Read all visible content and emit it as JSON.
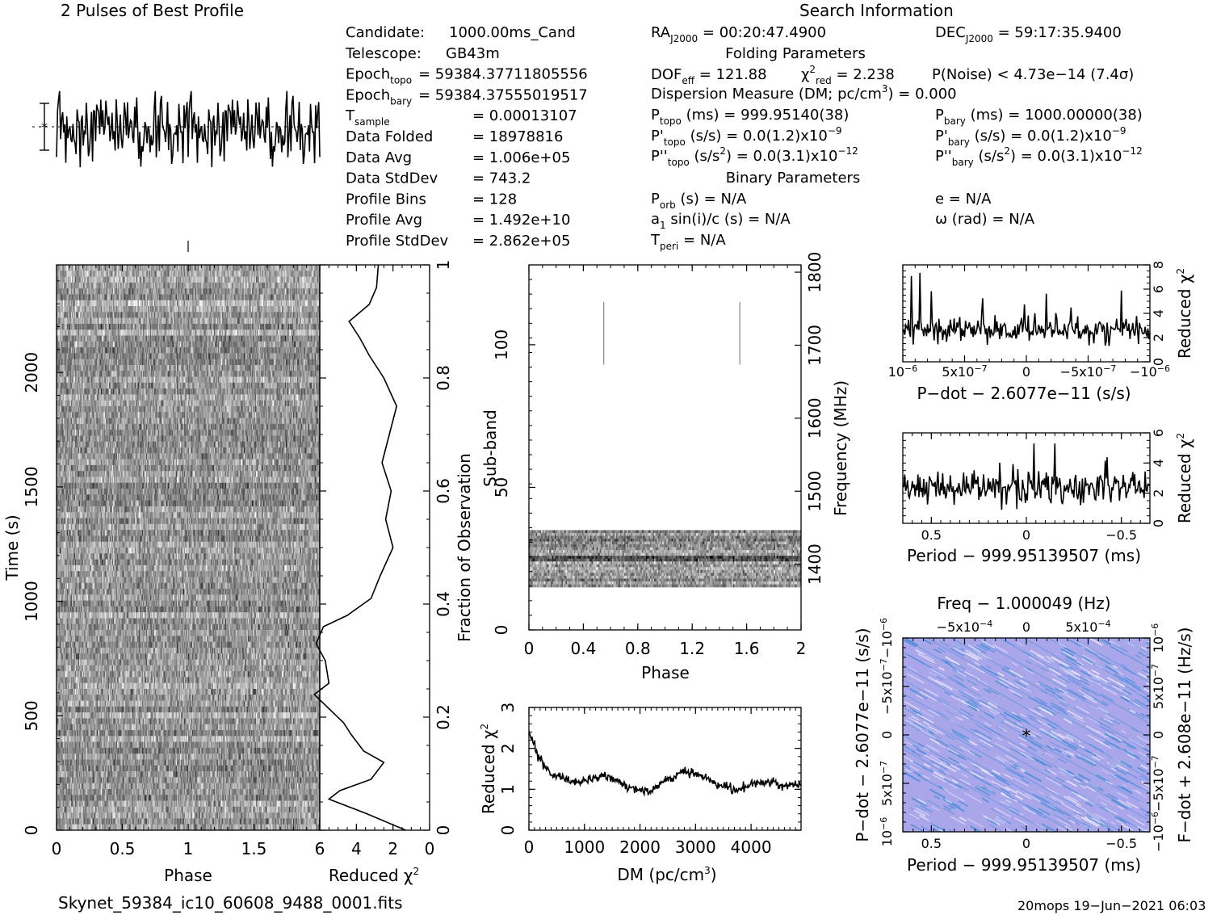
{
  "header": {
    "left_title": "2 Pulses of Best Profile",
    "right_title": "Search Information"
  },
  "info": {
    "col1": [
      {
        "label": "Candidate:",
        "value": "1000.00ms_Cand"
      },
      {
        "label": "Telescope:",
        "value": "GB43m"
      },
      {
        "label": "Epoch",
        "sub": "topo",
        "value": "= 59384.37711805556"
      },
      {
        "label": "Epoch",
        "sub": "bary",
        "value": "= 59384.37555019517"
      },
      {
        "label": "T",
        "sub": "sample",
        "value": "=   0.00013107"
      },
      {
        "label": "Data Folded",
        "value": "=   18978816"
      },
      {
        "label": "Data Avg",
        "value": "=   1.006e+05"
      },
      {
        "label": "Data StdDev",
        "value": "=   743.2"
      },
      {
        "label": "Profile Bins",
        "value": "=   128"
      },
      {
        "label": "Profile Avg",
        "value": "=   1.492e+10"
      },
      {
        "label": "Profile StdDev",
        "value": "=   2.862e+05"
      }
    ],
    "ra": {
      "label": "RA",
      "sub": "J2000",
      "value": "= 00:20:47.4900"
    },
    "dec": {
      "label": "DEC",
      "sub": "J2000",
      "value": "= 59:17:35.9400"
    },
    "folding_title": "Folding Parameters",
    "dof": {
      "label": "DOF",
      "sub": "eff",
      "value": "= 121.88"
    },
    "chi": {
      "label": "χ",
      "sup": "2",
      "sub": "red",
      "value": "= 2.238"
    },
    "pnoise": "P(Noise) < 4.73e−14   (7.4σ)",
    "dm_line": {
      "text": "Dispersion Measure (DM; pc/cm",
      "sup": "3",
      "end": ") = 0.000"
    },
    "p_topo": {
      "label": "P",
      "sub": "topo",
      "value": "(ms)  =   999.95140(38)"
    },
    "p_bary": {
      "label": "P",
      "sub": "bary",
      "value": "(ms)  =   1000.00000(38)"
    },
    "pd_topo": {
      "label": "P'",
      "sub": "topo",
      "value": "(s/s) = 0.0(1.2)x10",
      "sup": "−9"
    },
    "pd_bary": {
      "label": "P'",
      "sub": "bary",
      "value": "(s/s) = 0.0(1.2)x10",
      "sup": "−9"
    },
    "pdd_topo": {
      "label": "P''",
      "sub": "topo",
      "value": "(s/s",
      "sup1": "2",
      "mid": ") = 0.0(3.1)x10",
      "sup": "−12"
    },
    "pdd_bary": {
      "label": "P''",
      "sub": "bary",
      "value": "(s/s",
      "sup1": "2",
      "mid": ") = 0.0(3.1)x10",
      "sup": "−12"
    },
    "binary_title": "Binary Parameters",
    "porb": {
      "label": "P",
      "sub": "orb",
      "value": "(s) = N/A"
    },
    "e": "e = N/A",
    "asini": {
      "label": "a",
      "sub": "1",
      "value": "sin(i)/c (s) = N/A"
    },
    "omega": "ω (rad) = N/A",
    "tperi": {
      "label": "T",
      "sub": "peri",
      "value": "= N/A"
    }
  },
  "colors": {
    "ink": "#000000",
    "pp_bg": "#a9a6ea",
    "pp_stripe": "#4a8fd8",
    "pp_light": "#e6e4fb",
    "gray_mid": "#888888"
  },
  "chart_data": [
    {
      "id": "profile",
      "type": "line",
      "title": "2 Pulses of Best Profile",
      "xlim": [
        0,
        2
      ],
      "bins_per_pulse": 128,
      "pulses": 2
    },
    {
      "id": "time-phase",
      "type": "heatmap",
      "xlabel": "Phase",
      "ylabel": "Time (s)",
      "xlim": [
        0,
        2
      ],
      "ylim": [
        0,
        2470
      ],
      "x_ticks": [
        "0",
        "0.5",
        "1",
        "1.5"
      ],
      "y_ticks": [
        "0",
        "500",
        "1000",
        "1500",
        "2000"
      ],
      "x_tick_values": [
        0,
        0.5,
        1,
        1.5
      ],
      "y_tick_values": [
        0,
        500,
        1000,
        1500,
        2000
      ]
    },
    {
      "id": "chi-vs-time",
      "type": "line",
      "xlabel": "Reduced χ²",
      "ylabel": "Fraction of Observation",
      "xlim": [
        6,
        0
      ],
      "ylim": [
        0,
        1
      ],
      "x_ticks": [
        "6",
        "4",
        "2",
        "0"
      ],
      "x_tick_values": [
        6,
        4,
        2,
        0
      ],
      "y_ticks": [
        "0",
        "0.2",
        "0.4",
        "0.6",
        "0.8",
        "1"
      ],
      "y_tick_values": [
        0,
        0.2,
        0.4,
        0.6,
        0.8,
        1.0
      ],
      "frac": [
        0,
        0.03,
        0.055,
        0.07,
        0.09,
        0.12,
        0.14,
        0.17,
        0.19,
        0.24,
        0.26,
        0.3,
        0.33,
        0.36,
        0.38,
        0.41,
        0.45,
        0.5,
        0.55,
        0.6,
        0.65,
        0.7,
        0.75,
        0.8,
        0.84,
        0.87,
        0.9,
        0.93,
        0.96,
        1.0
      ],
      "chi": [
        1.3,
        3.5,
        5.5,
        4.9,
        3.2,
        2.5,
        3.6,
        4.3,
        4.7,
        6.3,
        5.5,
        5.7,
        6.2,
        5.8,
        4.5,
        3.2,
        2.7,
        2.0,
        2.4,
        2.1,
        2.6,
        2.2,
        1.8,
        2.5,
        3.3,
        3.8,
        4.4,
        3.3,
        2.9,
        2.8
      ]
    },
    {
      "id": "subband-phase",
      "type": "heatmap",
      "xlabel": "Phase",
      "ylabel": "Sub-band",
      "y2label": "Frequency (MHz)",
      "xlim": [
        0,
        2
      ],
      "ylim": [
        0,
        128
      ],
      "y2lim": [
        1310,
        1810
      ],
      "x_ticks": [
        "0",
        "0.4",
        "0.8",
        "1.2",
        "1.6",
        "2"
      ],
      "x_tick_values": [
        0,
        0.4,
        0.8,
        1.2,
        1.6,
        2.0
      ],
      "y_ticks": [
        "0",
        "50",
        "100"
      ],
      "y_tick_values": [
        0,
        50,
        100
      ],
      "y2_ticks": [
        "1400",
        "1500",
        "1600",
        "1700",
        "1800"
      ],
      "y2_tick_values": [
        1400,
        1500,
        1600,
        1700,
        1800
      ],
      "band_subbands": [
        15,
        35
      ],
      "rfi_lines_phase": [
        0.55,
        1.55
      ],
      "rfi_lines_subbands": [
        93,
        115
      ]
    },
    {
      "id": "chi-vs-dm",
      "type": "line",
      "xlabel": "DM (pc/cm³)",
      "ylabel": "Reduced χ²",
      "xlim": [
        0,
        4900
      ],
      "ylim": [
        0,
        3
      ],
      "x_ticks": [
        "0",
        "1000",
        "2000",
        "3000",
        "4000"
      ],
      "x_tick_values": [
        0,
        1000,
        2000,
        3000,
        4000
      ],
      "y_ticks": [
        "0",
        "1",
        "2",
        "3"
      ],
      "y_tick_values": [
        0,
        1,
        2,
        3
      ],
      "dm": [
        0,
        100,
        200,
        300,
        500,
        800,
        1000,
        1300,
        1600,
        1900,
        2200,
        2500,
        2800,
        3100,
        3400,
        3700,
        4000,
        4300,
        4600,
        4900
      ],
      "chi": [
        2.4,
        2.05,
        1.75,
        1.5,
        1.3,
        1.15,
        1.2,
        1.35,
        1.2,
        1.0,
        0.95,
        1.25,
        1.45,
        1.35,
        1.15,
        0.95,
        1.1,
        1.2,
        1.05,
        1.15
      ]
    },
    {
      "id": "chi-vs-pdot",
      "type": "line",
      "xlabel": "P−dot − 2.6077e−11 (s/s)",
      "ylabel": "Reduced χ²",
      "xlim": [
        1e-06,
        -1e-06
      ],
      "ylim": [
        0,
        8
      ],
      "x_ticks": [
        "10",
        "5x10",
        "0",
        "−5x10",
        "−10"
      ],
      "x_ticks_exp": [
        "−6",
        "−7",
        "",
        "−7",
        "−6"
      ],
      "x_tick_values": [
        1e-06,
        5e-07,
        0,
        -5e-07,
        -1e-06
      ],
      "y_ticks": [
        "0",
        "2",
        "4",
        "6",
        "8"
      ],
      "y_tick_values": [
        0,
        2,
        4,
        6,
        8
      ],
      "mean": 2.6,
      "peak": 7.6
    },
    {
      "id": "chi-vs-period",
      "type": "line",
      "xlabel": "Period − 999.95139507 (ms)",
      "ylabel": "Reduced χ²",
      "xlim": [
        0.65,
        -0.65
      ],
      "ylim": [
        0,
        6
      ],
      "x_ticks": [
        "0.5",
        "0",
        "−0.5"
      ],
      "x_tick_values": [
        0.5,
        0,
        -0.5
      ],
      "y_ticks": [
        "0",
        "2",
        "4",
        "6"
      ],
      "y_tick_values": [
        0,
        2,
        4,
        6
      ],
      "mean": 2.4,
      "peak": 5.3
    },
    {
      "id": "p-pdot",
      "type": "heatmap",
      "title": "Freq − 1.000049 (Hz)",
      "xlabel": "Period − 999.95139507 (ms)",
      "ylabel": "P−dot − 2.6077e−11 (s/s)",
      "y2label": "F−dot + 2.608e−11 (Hz/s)",
      "xlim": [
        0.65,
        -0.65
      ],
      "x_ticks": [
        "0.5",
        "0",
        "−0.5"
      ],
      "x_tick_values": [
        0.5,
        0,
        -0.5
      ],
      "top_ticks": [
        "−5x10",
        "0",
        "5x10"
      ],
      "top_ticks_exp": [
        "−4",
        "",
        "−4"
      ],
      "left_ticks": [
        "10",
        "5x10",
        "0",
        "−5x10",
        "−10"
      ],
      "left_ticks_exp": [
        "−6",
        "−7",
        "",
        "−7",
        "−6"
      ],
      "right_ticks": [
        "−10",
        "−5x10",
        "0",
        "5x10",
        "10"
      ],
      "right_ticks_exp": [
        "−6",
        "−7",
        "",
        "−7",
        "−6"
      ],
      "best_marker": [
        0,
        0
      ]
    }
  ],
  "footer": {
    "filename": "Skynet_59384_ic10_60608_9488_0001.fits",
    "stamp": "20mops 19−Jun−2021 06:03"
  }
}
